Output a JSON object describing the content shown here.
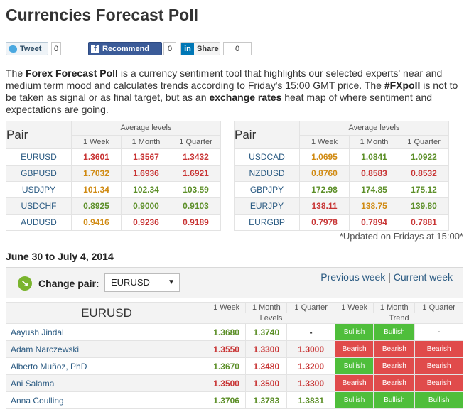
{
  "title": "Currencies Forecast Poll",
  "social": {
    "tweet": "Tweet",
    "tweet_count": "0",
    "recommend": "Recommend",
    "recommend_count": "0",
    "share": "Share",
    "share_count": "0"
  },
  "intro": {
    "p1": "The ",
    "b1": "Forex Forecast Poll",
    "p2": " is a currency sentiment tool that highlights our selected experts' near and medium term mood and calculates trends according to Friday's 15:00 GMT price. The ",
    "b2": "#FXpoll",
    "p3": " is not to be taken as signal or as final target, but as an ",
    "b3": "exchange rates",
    "p4": " heat map of where sentiment and expectations are going."
  },
  "avg": {
    "pair_label": "Pair",
    "levels_label": "Average levels",
    "cols": [
      "1 Week",
      "1 Month",
      "1 Quarter"
    ],
    "left": [
      {
        "pair": "EURUSD",
        "v": [
          "1.3601",
          "1.3567",
          "1.3432"
        ],
        "c": [
          "r",
          "r",
          "r"
        ]
      },
      {
        "pair": "GBPUSD",
        "v": [
          "1.7032",
          "1.6936",
          "1.6921"
        ],
        "c": [
          "o",
          "r",
          "r"
        ]
      },
      {
        "pair": "USDJPY",
        "v": [
          "101.34",
          "102.34",
          "103.59"
        ],
        "c": [
          "o",
          "g",
          "g"
        ]
      },
      {
        "pair": "USDCHF",
        "v": [
          "0.8925",
          "0.9000",
          "0.9103"
        ],
        "c": [
          "g",
          "g",
          "g"
        ]
      },
      {
        "pair": "AUDUSD",
        "v": [
          "0.9416",
          "0.9236",
          "0.9189"
        ],
        "c": [
          "o",
          "r",
          "r"
        ]
      }
    ],
    "right": [
      {
        "pair": "USDCAD",
        "v": [
          "1.0695",
          "1.0841",
          "1.0922"
        ],
        "c": [
          "o",
          "g",
          "g"
        ]
      },
      {
        "pair": "NZDUSD",
        "v": [
          "0.8760",
          "0.8583",
          "0.8532"
        ],
        "c": [
          "o",
          "r",
          "r"
        ]
      },
      {
        "pair": "GBPJPY",
        "v": [
          "172.98",
          "174.85",
          "175.12"
        ],
        "c": [
          "g",
          "g",
          "g"
        ]
      },
      {
        "pair": "EURJPY",
        "v": [
          "138.11",
          "138.75",
          "139.80"
        ],
        "c": [
          "r",
          "o",
          "g"
        ]
      },
      {
        "pair": "EURGBP",
        "v": [
          "0.7978",
          "0.7894",
          "0.7881"
        ],
        "c": [
          "r",
          "r",
          "r"
        ]
      }
    ],
    "updated": "*Updated on Fridays at 15:00*"
  },
  "period": "June 30 to July 4, 2014",
  "change_pair": {
    "label": "Change pair:",
    "selected": "EURUSD",
    "prev": "Previous week",
    "sep": "|",
    "current": "Current week"
  },
  "detail": {
    "pair": "EURUSD",
    "cols": [
      "1 Week",
      "1 Month",
      "1 Quarter",
      "1 Week",
      "1 Month",
      "1 Quarter"
    ],
    "levels_label": "Levels",
    "trend_label": "Trend",
    "rows": [
      {
        "name": "Aayush Jindal",
        "v": [
          "1.3680",
          "1.3740",
          "-"
        ],
        "vc": [
          "g",
          "g",
          ""
        ],
        "t": [
          "Bullish",
          "Bullish",
          "-"
        ]
      },
      {
        "name": "Adam Narczewski",
        "v": [
          "1.3550",
          "1.3300",
          "1.3000"
        ],
        "vc": [
          "r",
          "r",
          "r"
        ],
        "t": [
          "Bearish",
          "Bearish",
          "Bearish"
        ]
      },
      {
        "name": "Alberto Muñoz, PhD",
        "v": [
          "1.3670",
          "1.3480",
          "1.3200"
        ],
        "vc": [
          "g",
          "r",
          "r"
        ],
        "t": [
          "Bullish",
          "Bearish",
          "Bearish"
        ]
      },
      {
        "name": "Ani Salama",
        "v": [
          "1.3500",
          "1.3500",
          "1.3300"
        ],
        "vc": [
          "r",
          "r",
          "r"
        ],
        "t": [
          "Bearish",
          "Bearish",
          "Bearish"
        ]
      },
      {
        "name": "Anna Coulling",
        "v": [
          "1.3706",
          "1.3783",
          "1.3831"
        ],
        "vc": [
          "g",
          "g",
          "g"
        ],
        "t": [
          "Bullish",
          "Bullish",
          "Bullish"
        ]
      }
    ]
  },
  "colors": {
    "green": "#5c8f28",
    "red": "#c83434",
    "orange": "#d08a12",
    "bullish": "#4fbe3b",
    "bearish": "#e04b4b"
  }
}
